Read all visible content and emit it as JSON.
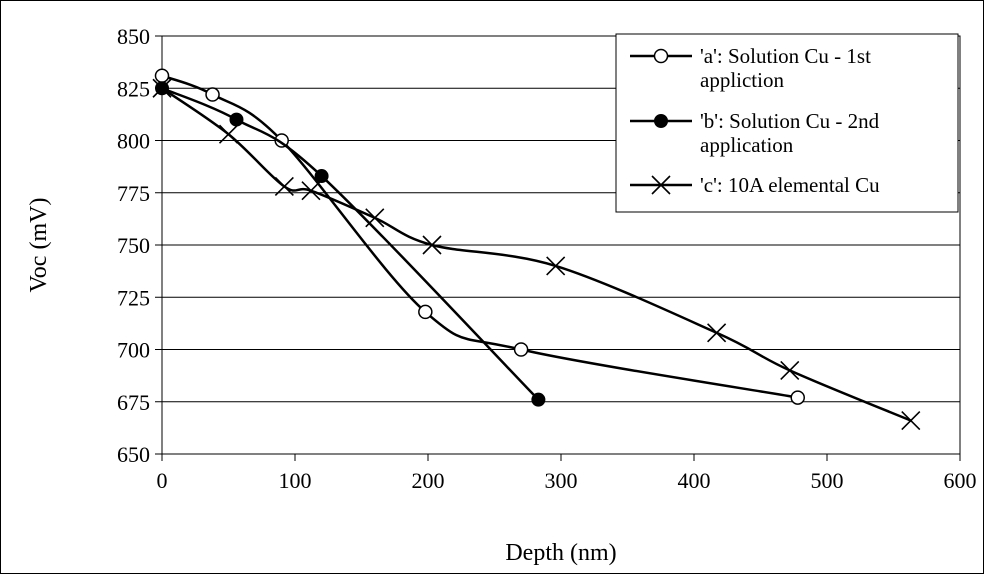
{
  "chart_data": {
    "type": "line",
    "title": "",
    "xlabel": "Depth (nm)",
    "ylabel": "Voc (mV)",
    "xlim": [
      0,
      600
    ],
    "ylim": [
      650,
      850
    ],
    "x_ticks": [
      "0",
      "100",
      "200",
      "300",
      "400",
      "500",
      "600"
    ],
    "y_ticks": [
      "650",
      "675",
      "700",
      "725",
      "750",
      "775",
      "800",
      "825",
      "850"
    ],
    "grid": "horizontal",
    "legend_position": "top-right",
    "series": [
      {
        "name": "'a': Solution Cu - 1st appliction",
        "marker": "open-circle",
        "points": [
          [
            0,
            831
          ],
          [
            38,
            822
          ],
          [
            90,
            800
          ],
          [
            198,
            718
          ],
          [
            270,
            700
          ],
          [
            478,
            677
          ]
        ]
      },
      {
        "name": "'b': Solution Cu - 2nd application",
        "marker": "filled-circle",
        "points": [
          [
            0,
            825
          ],
          [
            56,
            810
          ],
          [
            120,
            783
          ],
          [
            283,
            676
          ]
        ]
      },
      {
        "name": "'c': 10A elemental Cu",
        "marker": "x",
        "points": [
          [
            0,
            825
          ],
          [
            50,
            803
          ],
          [
            92,
            778
          ],
          [
            112,
            776
          ],
          [
            160,
            763
          ],
          [
            203,
            750
          ],
          [
            296,
            740
          ],
          [
            417,
            708
          ],
          [
            472,
            690
          ],
          [
            563,
            666
          ]
        ]
      }
    ]
  }
}
